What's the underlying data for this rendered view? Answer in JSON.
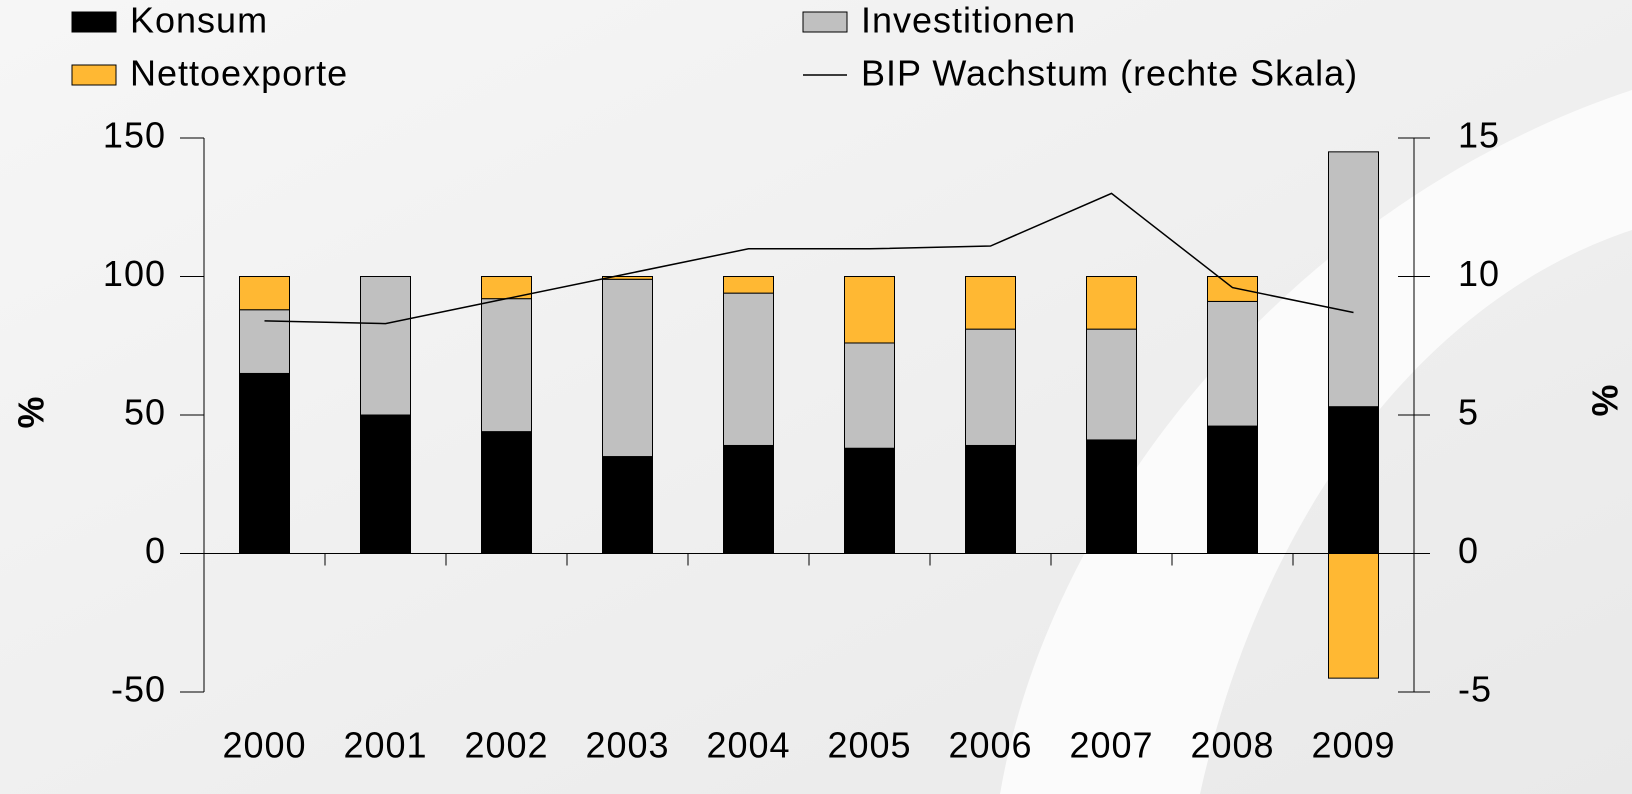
{
  "chart_data": {
    "type": "bar",
    "stacked": true,
    "categories": [
      "2000",
      "2001",
      "2002",
      "2003",
      "2004",
      "2005",
      "2006",
      "2007",
      "2008",
      "2009"
    ],
    "series": [
      {
        "name": "Konsum",
        "color": "#000000",
        "values": [
          65,
          50,
          44,
          35,
          39,
          38,
          39,
          41,
          46,
          53
        ]
      },
      {
        "name": "Investitionen",
        "color": "#c0c0c0",
        "values": [
          23,
          50,
          48,
          64,
          55,
          38,
          42,
          40,
          45,
          92
        ]
      },
      {
        "name": "Nettoexporte",
        "color": "#ffb833",
        "values": [
          12,
          0,
          8,
          1,
          6,
          24,
          19,
          19,
          9,
          -45
        ]
      },
      {
        "name": "BIP Wachstum (rechte Skala)",
        "color": "#000000",
        "type": "line",
        "axis": "y2",
        "values": [
          8.4,
          8.3,
          9.2,
          10.1,
          11.0,
          11.0,
          11.1,
          13.0,
          9.6,
          8.7
        ]
      }
    ],
    "ylabel": "%",
    "y2label": "%",
    "ylim": [
      -50,
      150
    ],
    "yticks": [
      -50,
      0,
      50,
      100,
      150
    ],
    "y2lim": [
      -5,
      15
    ],
    "y2ticks": [
      -5,
      0,
      5,
      10,
      15
    ],
    "grid": false
  }
}
